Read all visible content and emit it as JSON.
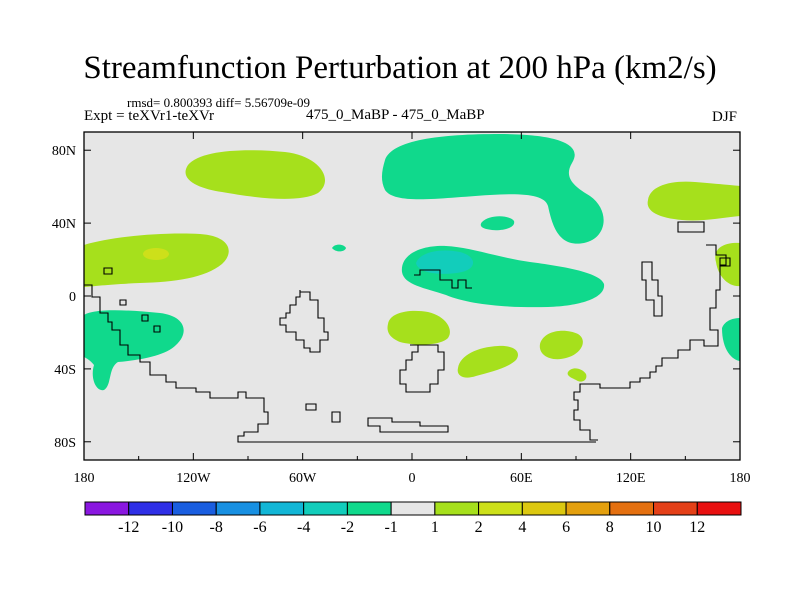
{
  "header": {
    "title": "Streamfunction Perturbation at 200 hPa (km2/s)",
    "stats": "rmsd= 0.800393 diff= 5.56709e-09",
    "left_label": "Expt = teXVr1-teXVr",
    "center_label": "475_0_MaBP - 475_0_MaBP",
    "right_label": "DJF"
  },
  "chart_data": {
    "type": "heatmap",
    "title": "Streamfunction Perturbation at 200 hPa (km2/s)",
    "projection": "cylindrical equidistant",
    "xlim": [
      -180,
      180
    ],
    "ylim": [
      -90,
      90
    ],
    "x_ticks": [
      {
        "value": -180,
        "label": "180"
      },
      {
        "value": -120,
        "label": "120W"
      },
      {
        "value": -60,
        "label": "60W"
      },
      {
        "value": 0,
        "label": "0"
      },
      {
        "value": 60,
        "label": "60E"
      },
      {
        "value": 120,
        "label": "120E"
      },
      {
        "value": 180,
        "label": "180"
      }
    ],
    "y_ticks": [
      {
        "value": 80,
        "label": "80N"
      },
      {
        "value": 40,
        "label": "40N"
      },
      {
        "value": 0,
        "label": "0"
      },
      {
        "value": -40,
        "label": "40S"
      },
      {
        "value": -80,
        "label": "80S"
      }
    ],
    "background_color": "#e6e6e6",
    "colorbar": {
      "levels": [
        "-12",
        "-10",
        "-8",
        "-6",
        "-4",
        "-2",
        "-1",
        "1",
        "2",
        "4",
        "6",
        "8",
        "10",
        "12"
      ],
      "colors": [
        "#8a17e0",
        "#2f2fe6",
        "#1a5ee0",
        "#1890e2",
        "#12b6d6",
        "#12cdbb",
        "#10d98c",
        "#e6e6e6",
        "#a6e01c",
        "#cde01a",
        "#dcc810",
        "#e4a00e",
        "#e47010",
        "#e44018",
        "#e81010"
      ]
    },
    "regions": [
      {
        "name": "nh-pacific-positive",
        "level": "1 to 2",
        "color": "#a6e01c",
        "center": [
          -78,
          67
        ],
        "extent": [
          -122,
          -35,
          52,
          80
        ]
      },
      {
        "name": "nh-atlantic-eurasia-negative",
        "level": "-2 to -1",
        "color": "#10d98c",
        "center": [
          40,
          70
        ],
        "extent": [
          -15,
          108,
          40,
          84
        ]
      },
      {
        "name": "caspian-negative",
        "level": "-2 to -1",
        "color": "#10d98c",
        "center": [
          38,
          41
        ],
        "extent": [
          28,
          48,
          38,
          45
        ]
      },
      {
        "name": "east-siberia-positive",
        "level": "1 to 2",
        "color": "#a6e01c",
        "center": [
          160,
          52
        ],
        "extent": [
          145,
          180,
          42,
          62
        ]
      },
      {
        "name": "tropical-pacific-positive",
        "level": "1 to 4",
        "color": "#a6e01c",
        "center": [
          -160,
          16
        ],
        "extent": [
          -180,
          -115,
          2,
          30
        ]
      },
      {
        "name": "tropical-pacific-max",
        "level": "2 to 4",
        "color": "#cde01a",
        "center": [
          -158,
          23
        ],
        "extent": [
          -163,
          -152,
          20,
          26
        ]
      },
      {
        "name": "north-africa-arabia-negative",
        "level": "-4 to -1",
        "color": "#10d98c",
        "center": [
          45,
          12
        ],
        "extent": [
          -2,
          110,
          -5,
          29
        ]
      },
      {
        "name": "north-africa-min",
        "level": "-4 to -2",
        "color": "#12cdbb",
        "center": [
          25,
          18
        ],
        "extent": [
          10,
          40,
          14,
          23
        ]
      },
      {
        "name": "mid-atlantic-negative",
        "level": "-2 to -1",
        "color": "#10d98c",
        "center": [
          -43,
          26
        ],
        "extent": [
          -46,
          -40,
          24,
          28
        ]
      },
      {
        "name": "west-pacific-positive",
        "level": "1 to 2",
        "color": "#a6e01c",
        "center": [
          165,
          16
        ],
        "extent": [
          156,
          180,
          0,
          30
        ]
      },
      {
        "name": "south-pacific-negative",
        "level": "-2 to -1",
        "color": "#10d98c",
        "center": [
          -155,
          -25
        ],
        "extent": [
          -180,
          -110,
          -54,
          -10
        ]
      },
      {
        "name": "south-atlantic-positive",
        "level": "1 to 2",
        "color": "#a6e01c",
        "center": [
          5,
          -18
        ],
        "extent": [
          -12,
          22,
          -28,
          -8
        ]
      },
      {
        "name": "south-africa-positive",
        "level": "1 to 2",
        "color": "#a6e01c",
        "center": [
          40,
          -37
        ],
        "extent": [
          10,
          65,
          -48,
          -28
        ]
      },
      {
        "name": "madagascar-positive",
        "level": "1 to 2",
        "color": "#a6e01c",
        "center": [
          78,
          -28
        ],
        "extent": [
          68,
          90,
          -36,
          -18
        ]
      },
      {
        "name": "south-indian-positive",
        "level": "1 to 2",
        "color": "#a6e01c",
        "center": [
          90,
          -44
        ],
        "extent": [
          85,
          96,
          -49,
          -39
        ]
      },
      {
        "name": "southwest-pacific-negative",
        "level": "-2 to -1",
        "color": "#10d98c",
        "center": [
          172,
          -25
        ],
        "extent": [
          162,
          180,
          -38,
          -12
        ]
      }
    ]
  }
}
